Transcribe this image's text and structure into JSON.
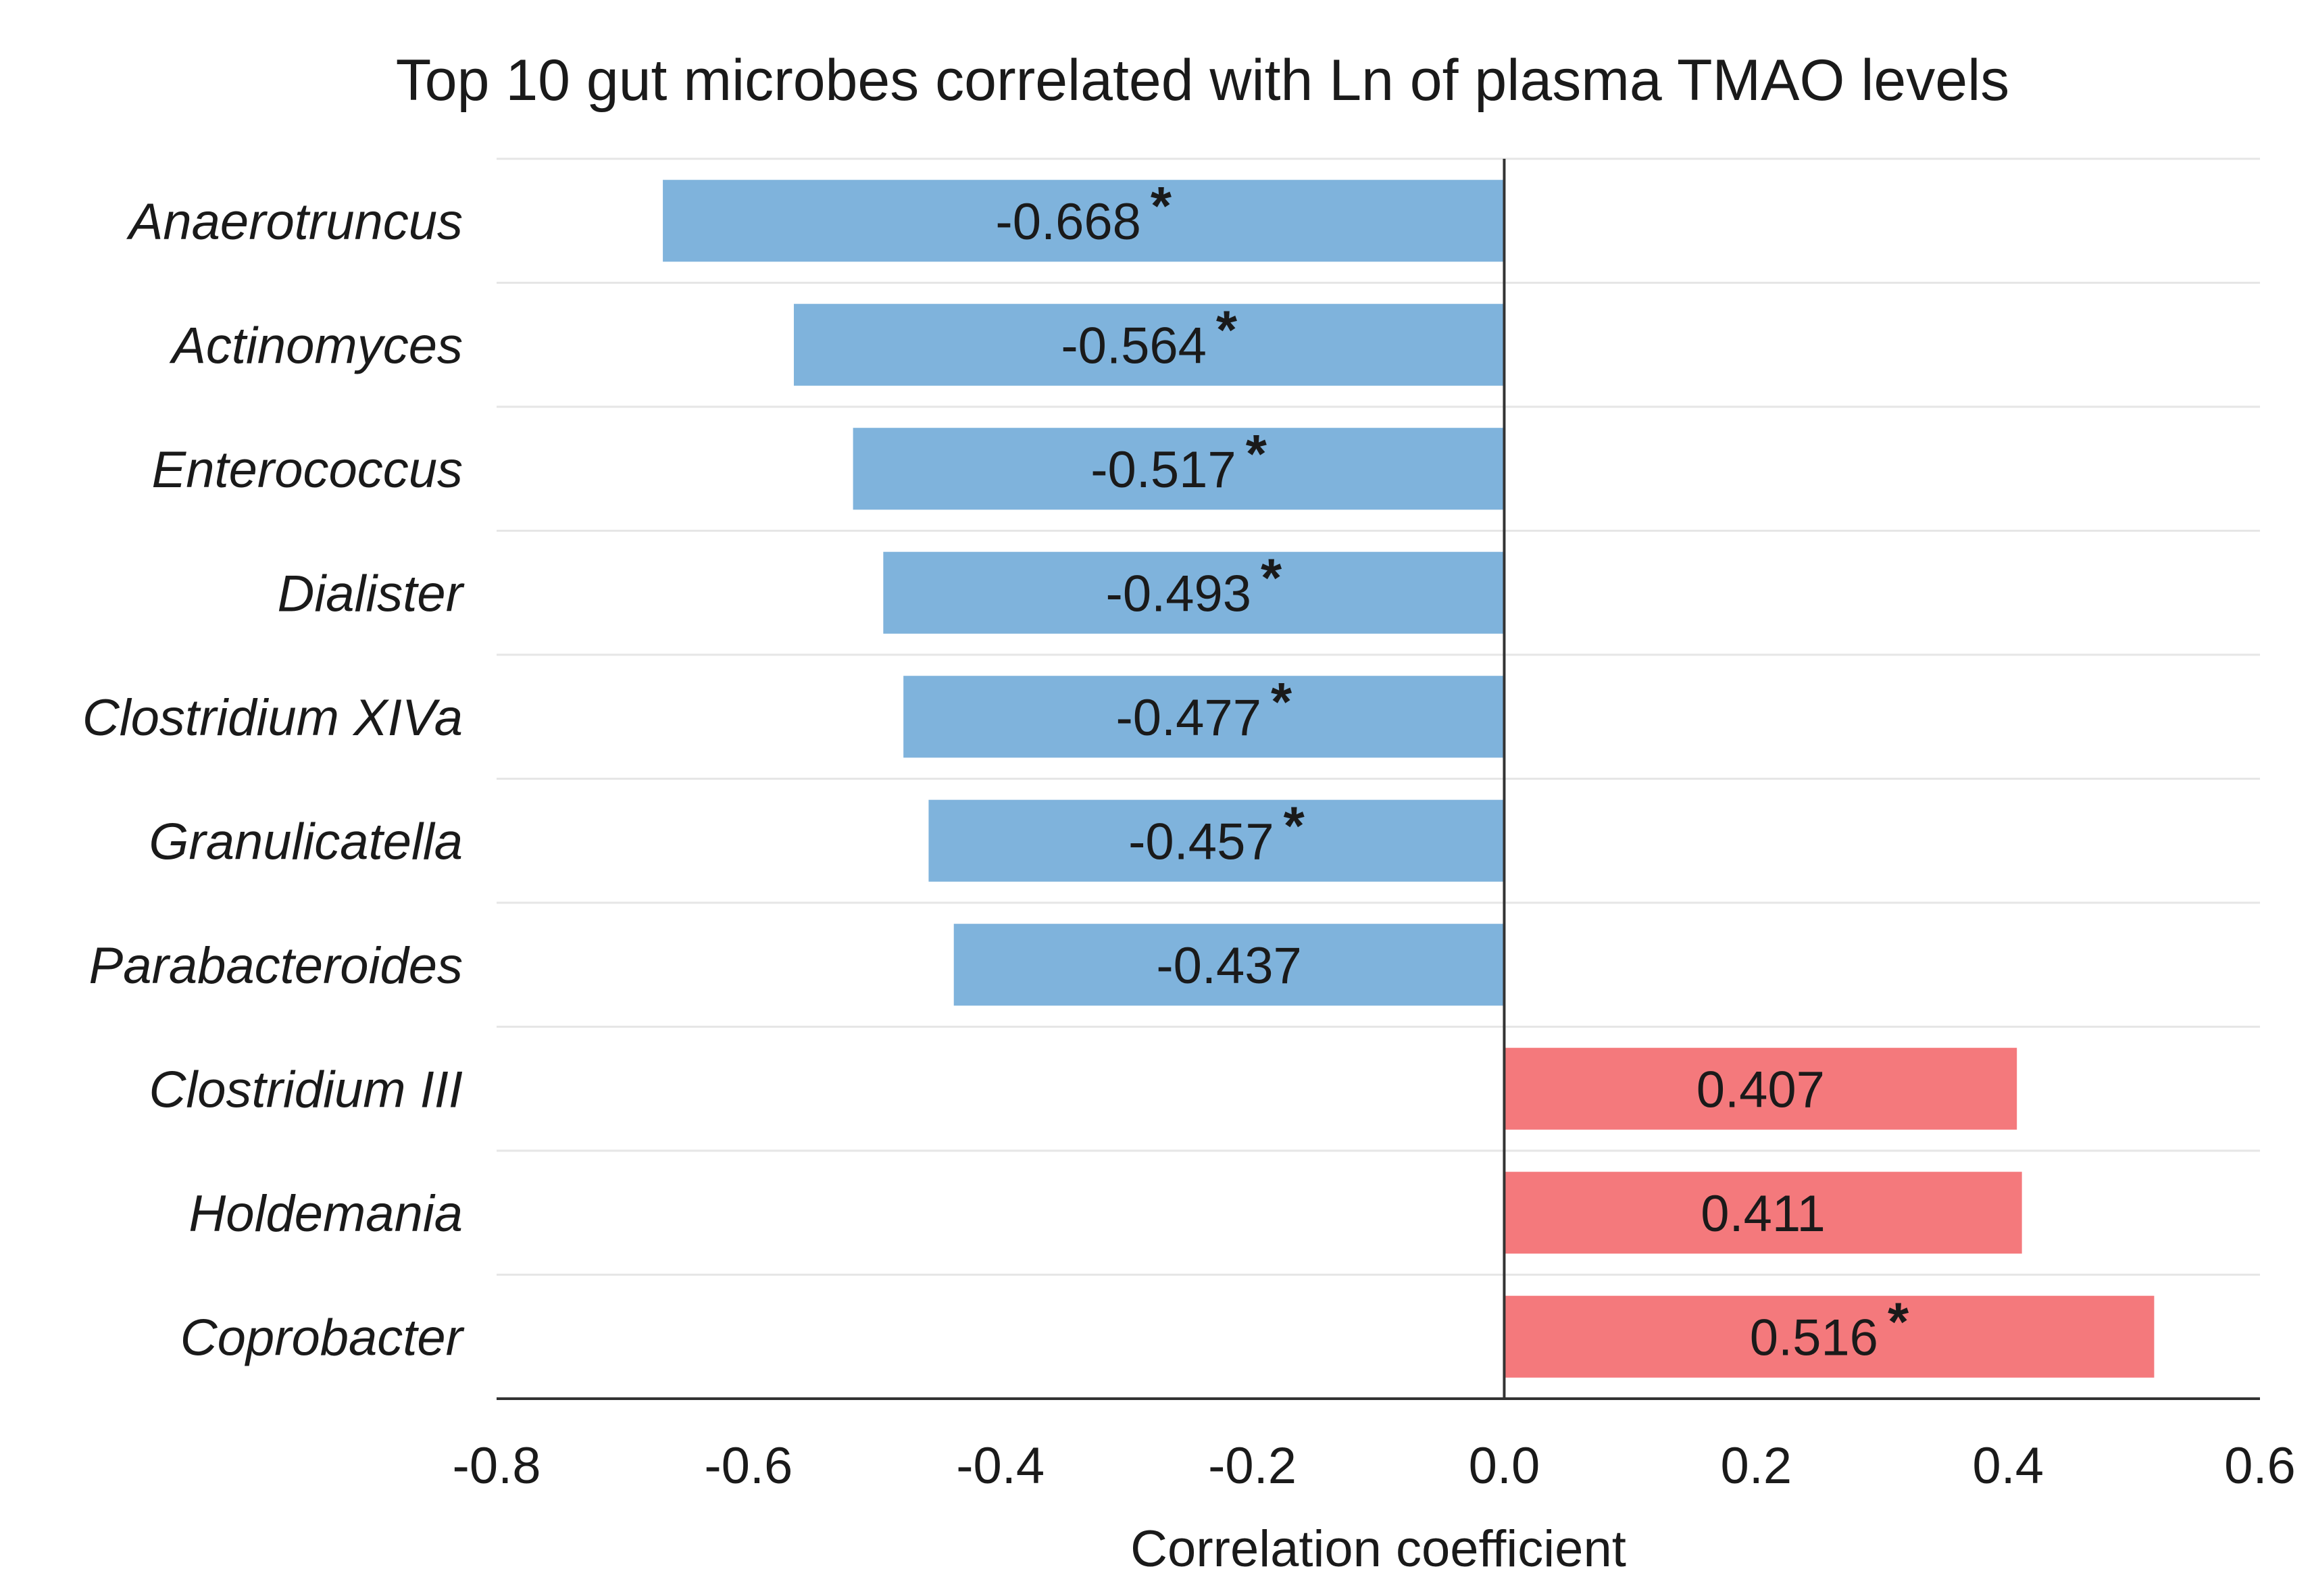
{
  "chart_data": {
    "type": "bar",
    "orientation": "horizontal",
    "title": "Top 10 gut microbes correlated with Ln of plasma TMAO levels",
    "xlabel": "Correlation coefficient",
    "ylabel": "",
    "xlim": [
      -0.8,
      0.6
    ],
    "xticks": [
      -0.8,
      -0.6,
      -0.4,
      -0.2,
      0.0,
      0.2,
      0.4,
      0.6
    ],
    "xtick_labels": [
      "-0.8",
      "-0.6",
      "-0.4",
      "-0.2",
      "0.0",
      "0.2",
      "0.4",
      "0.6"
    ],
    "grid": "horizontal",
    "categories": [
      "Anaerotruncus",
      "Actinomyces",
      "Enterococcus",
      "Dialister",
      "Clostridium XIVa",
      "Granulicatella",
      "Parabacteroides",
      "Clostridium III",
      "Holdemania",
      "Coprobacter"
    ],
    "values": [
      -0.668,
      -0.564,
      -0.517,
      -0.493,
      -0.477,
      -0.457,
      -0.437,
      0.407,
      0.411,
      0.516
    ],
    "data_labels": [
      "-0.668",
      "-0.564",
      "-0.517",
      "-0.493",
      "-0.477",
      "-0.457",
      "-0.437",
      "0.407",
      "0.411",
      "0.516"
    ],
    "significant": [
      true,
      true,
      true,
      true,
      true,
      true,
      false,
      false,
      false,
      true
    ],
    "significance_marker": "*",
    "colors": {
      "negative": "#7fb3dc",
      "positive": "#f4797c",
      "axis": "#333333",
      "grid": "#e6e6e6",
      "text": "#1a1a1a"
    }
  }
}
